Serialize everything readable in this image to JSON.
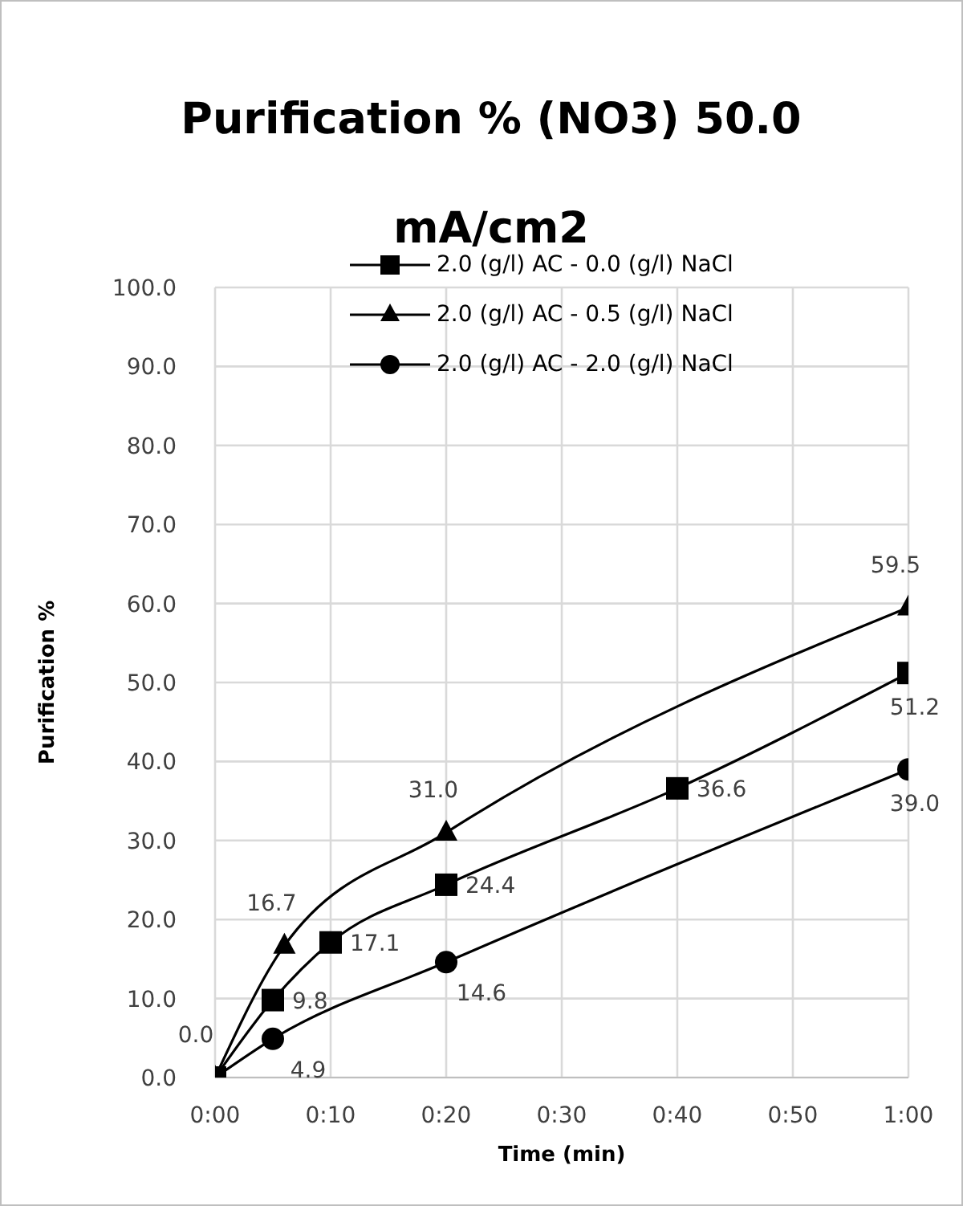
{
  "chart_data": {
    "type": "line",
    "title": "Purification % (NO3) 50.0 mA/cm2",
    "xlabel": "Time (min)",
    "ylabel": "Purification %",
    "series": [
      {
        "name": "2.0 (g/l) AC - 0.0 (g/l) NaCl",
        "color": "#000000",
        "marker": "square",
        "x": [
          0,
          0.08333,
          0.16667,
          0.33333,
          0.66667,
          1
        ],
        "values": [
          0.0,
          9.8,
          17.1,
          24.4,
          36.6,
          51.2
        ],
        "value_labels": [
          "0.0",
          "9.8",
          "17.1",
          "24.4",
          "36.6",
          "51.2"
        ]
      },
      {
        "name": "2.0 (g/l) AC - 0.5 (g/l) NaCl",
        "color": "#000000",
        "marker": "triangle",
        "x": [
          0,
          0.1,
          0.33333,
          1
        ],
        "values": [
          0.0,
          16.7,
          31.0,
          59.5
        ],
        "value_labels": [
          null,
          "16.7",
          "31.0",
          "59.5"
        ]
      },
      {
        "name": "2.0 (g/l) AC - 2.0 (g/l) NaCl",
        "color": "#000000",
        "marker": "circle",
        "x": [
          0,
          0.08333,
          0.33333,
          1
        ],
        "values": [
          0.0,
          4.9,
          14.6,
          39.0
        ],
        "value_labels": [
          null,
          "4.9",
          "14.6",
          "39.0"
        ]
      }
    ],
    "xlim": [
      0,
      1
    ],
    "xticks": [
      {
        "value": 0,
        "label": "0:00"
      },
      {
        "value": 0.16667,
        "label": "0:10"
      },
      {
        "value": 0.33333,
        "label": "0:20"
      },
      {
        "value": 0.5,
        "label": "0:30"
      },
      {
        "value": 0.66667,
        "label": "0:40"
      },
      {
        "value": 0.83333,
        "label": "0:50"
      },
      {
        "value": 1,
        "label": "1:00"
      }
    ],
    "ylim": [
      0,
      100
    ],
    "yticks": [
      {
        "value": 0,
        "label": "0.0"
      },
      {
        "value": 10,
        "label": "10.0"
      },
      {
        "value": 20,
        "label": "20.0"
      },
      {
        "value": 30,
        "label": "30.0"
      },
      {
        "value": 40,
        "label": "40.0"
      },
      {
        "value": 50,
        "label": "50.0"
      },
      {
        "value": 60,
        "label": "60.0"
      },
      {
        "value": 70,
        "label": "70.0"
      },
      {
        "value": 80,
        "label": "80.0"
      },
      {
        "value": 90,
        "label": "90.0"
      },
      {
        "value": 100,
        "label": "100.0"
      }
    ],
    "grid": true,
    "legend": "top",
    "line_style": "solid"
  }
}
